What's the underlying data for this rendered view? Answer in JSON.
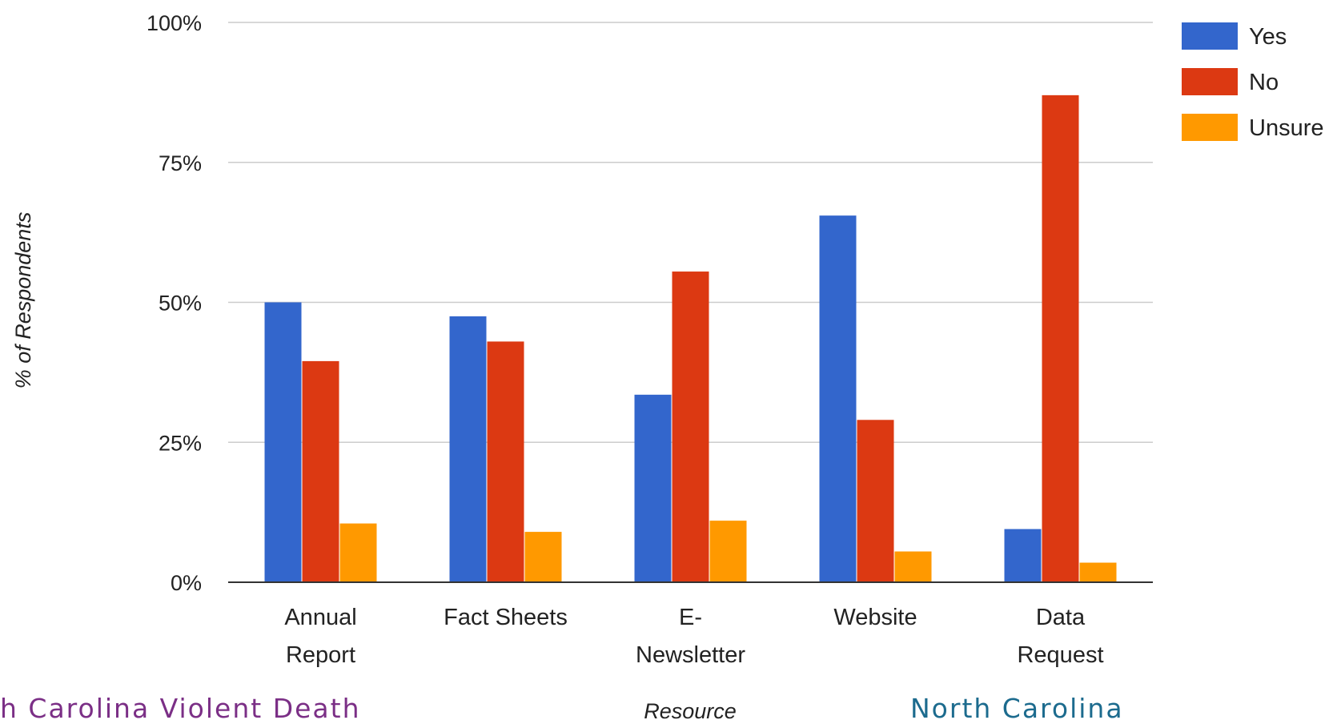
{
  "chart_data": {
    "type": "bar",
    "categories": [
      [
        "Annual",
        "Report"
      ],
      [
        "Fact Sheets"
      ],
      [
        "E-",
        "Newsletter"
      ],
      [
        "Website"
      ],
      [
        "Data",
        "Request"
      ]
    ],
    "series": [
      {
        "name": "Yes",
        "color": "#3366cc",
        "values": [
          50,
          47.5,
          33.5,
          65.5,
          9.5
        ]
      },
      {
        "name": "No",
        "color": "#dc3912",
        "values": [
          39.5,
          43,
          55.5,
          29,
          87
        ]
      },
      {
        "name": "Unsure",
        "color": "#ff9900",
        "values": [
          10.5,
          9,
          11,
          5.5,
          3.5
        ]
      }
    ],
    "yticks": [
      {
        "value": 0,
        "label": "0%"
      },
      {
        "value": 25,
        "label": "25%"
      },
      {
        "value": 50,
        "label": "50%"
      },
      {
        "value": 75,
        "label": "75%"
      },
      {
        "value": 100,
        "label": "100%"
      }
    ],
    "ylim": [
      0,
      100
    ],
    "ylabel": "% of Respondents",
    "xlabel": "Resource",
    "grid": true,
    "legend_position": "right"
  },
  "footer": {
    "left_text": "h Carolina Violent Death",
    "right_text": "North Carolina"
  }
}
